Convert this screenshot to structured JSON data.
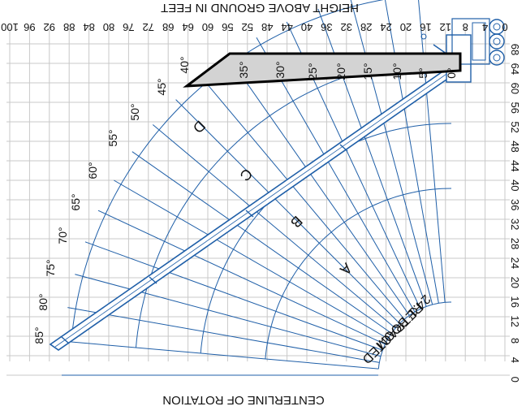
{
  "titles": {
    "height_axis": "HEIGHT ABOVE GROUND IN FEET",
    "rotation_axis": "CENTERLINE OF ROTATION"
  },
  "height_ticks": [
    "100",
    "96",
    "92",
    "88",
    "84",
    "80",
    "76",
    "72",
    "68",
    "64",
    "60",
    "56",
    "52",
    "48",
    "44",
    "40",
    "36",
    "32",
    "28",
    "24",
    "20",
    "16",
    "12",
    "8",
    "4",
    "0"
  ],
  "radius_ticks": [
    "68",
    "64",
    "60",
    "56",
    "52",
    "48",
    "44",
    "40",
    "36",
    "32",
    "28",
    "24",
    "20",
    "16",
    "12",
    "8",
    "4",
    "0"
  ],
  "boom_angles": [
    "0°",
    "5°",
    "10°",
    "15°",
    "20°",
    "25°",
    "30°",
    "35°",
    "40°",
    "45°",
    "50°",
    "55°",
    "60°",
    "65°",
    "70°",
    "75°",
    "80°",
    "85°"
  ],
  "zones": [
    "A",
    "B",
    "C",
    "D"
  ],
  "retracted_label": [
    "24.1' BOOM",
    "RETRACTED"
  ],
  "colors": {
    "grid": "#c8c8c8",
    "chart_line": "#1f5fa8",
    "box_fill": "#d3d3d3",
    "box_stroke": "#000000"
  }
}
